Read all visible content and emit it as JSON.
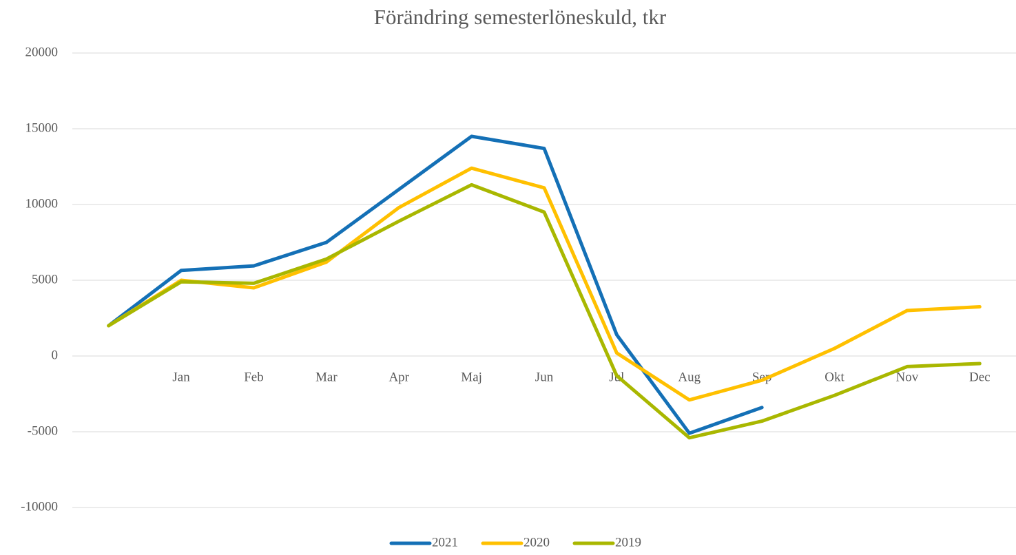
{
  "chart_data": {
    "type": "line",
    "title": "Förändring semesterlöneskuld, tkr",
    "categories": [
      null,
      "Jan",
      "Feb",
      "Mar",
      "Apr",
      "Maj",
      "Jun",
      "Jul",
      "Aug",
      "Sep",
      "Okt",
      "Nov",
      "Dec"
    ],
    "series": [
      {
        "name": "2021",
        "color": "#1470b6",
        "values": [
          2000,
          5650,
          5950,
          7500,
          11000,
          14500,
          13700,
          1400,
          -5100,
          -3400,
          null,
          null,
          null
        ]
      },
      {
        "name": "2020",
        "color": "#ffc000",
        "values": [
          2000,
          5000,
          4500,
          6200,
          9800,
          12400,
          11100,
          200,
          -2900,
          -1600,
          500,
          3000,
          3250
        ]
      },
      {
        "name": "2019",
        "color": "#a9b700",
        "values": [
          2000,
          4900,
          4800,
          6400,
          8900,
          11300,
          9500,
          -1300,
          -5400,
          -4300,
          -2600,
          -700,
          -500
        ]
      }
    ],
    "ylim": [
      -10000,
      20000
    ],
    "yticks": [
      -10000,
      -5000,
      0,
      5000,
      10000,
      15000,
      20000
    ],
    "grid": true,
    "legend": "bottom"
  }
}
